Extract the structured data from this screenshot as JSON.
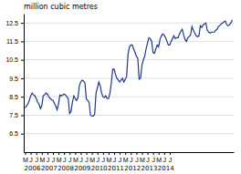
{
  "chart_data": {
    "type": "line",
    "title": "million cubic metres",
    "color": "#1f3888",
    "categories": [
      "M",
      null,
      null,
      null,
      "J",
      null,
      null,
      null,
      "J",
      null,
      null,
      null,
      "M",
      null,
      null,
      null,
      "J",
      null,
      null,
      null,
      "J",
      null,
      null,
      null,
      "M",
      null,
      null,
      null,
      "J",
      null,
      null,
      null,
      "J",
      null,
      null,
      null,
      "M",
      null,
      null,
      null,
      "J",
      null,
      null,
      null,
      "J",
      null,
      null,
      null,
      "M",
      null,
      null,
      null,
      "J",
      null,
      null,
      null,
      "J",
      null,
      null,
      null,
      "M",
      null,
      null,
      null,
      "J",
      null,
      null,
      null,
      "J",
      null,
      null,
      null,
      "M",
      null,
      null,
      null,
      "J",
      null,
      null,
      null,
      "J",
      null,
      null,
      null,
      "M",
      null,
      null,
      null,
      "J",
      null,
      null,
      null,
      "J",
      null,
      null,
      null,
      "M",
      null,
      null,
      null,
      "J",
      null,
      null,
      null,
      "J",
      null,
      null,
      null,
      null,
      null,
      null,
      null,
      null,
      null,
      null,
      null,
      null,
      null,
      null,
      null,
      null,
      null,
      null,
      null,
      null,
      null,
      null,
      null,
      null,
      null,
      null,
      null,
      null,
      null,
      null,
      null,
      null,
      null,
      null,
      null,
      null,
      null,
      null,
      null,
      null,
      null,
      null,
      null,
      null,
      null
    ],
    "values": [
      7.9,
      8.0,
      8.1,
      8.3,
      8.55,
      8.7,
      8.6,
      8.55,
      8.4,
      8.2,
      8.1,
      7.85,
      8.0,
      8.55,
      8.6,
      8.7,
      8.65,
      8.5,
      8.4,
      8.35,
      8.3,
      8.15,
      8.0,
      7.8,
      8.1,
      8.6,
      8.55,
      8.6,
      8.65,
      8.6,
      8.5,
      8.4,
      7.6,
      7.7,
      8.2,
      8.55,
      8.4,
      8.3,
      8.45,
      9.1,
      9.3,
      9.4,
      9.35,
      9.25,
      8.4,
      8.3,
      8.2,
      7.5,
      7.45,
      7.45,
      7.55,
      8.7,
      9.0,
      9.3,
      9.1,
      8.7,
      8.5,
      8.45,
      8.55,
      8.4,
      8.4,
      8.7,
      9.25,
      10.0,
      10.0,
      9.7,
      9.5,
      9.4,
      9.3,
      9.4,
      9.5,
      9.3,
      9.45,
      9.6,
      10.8,
      11.2,
      11.3,
      11.3,
      11.1,
      10.9,
      10.7,
      10.6,
      9.45,
      9.5,
      10.2,
      10.5,
      10.7,
      11.1,
      11.4,
      11.7,
      11.65,
      11.5,
      10.9,
      10.85,
      11.1,
      11.3,
      11.2,
      11.6,
      11.8,
      11.9,
      11.85,
      11.7,
      11.5,
      11.3,
      11.3,
      11.5,
      11.65,
      11.8,
      11.65,
      11.7,
      11.7,
      11.9,
      12.05,
      12.15,
      11.85,
      11.6,
      11.5,
      11.7,
      11.75,
      11.85,
      12.3,
      12.1,
      11.95,
      11.8,
      11.75,
      11.8,
      12.35,
      12.25,
      12.4,
      12.45,
      12.5,
      12.1,
      12.0,
      11.95,
      12.0,
      12.0,
      12.0,
      12.1,
      12.15,
      12.3,
      12.35,
      12.45,
      12.5,
      12.55,
      12.6,
      12.4,
      12.35,
      12.4,
      12.5,
      12.65
    ],
    "ylim": [
      5.5,
      13.0
    ],
    "yticks": [
      6.5,
      7.5,
      8.5,
      9.5,
      10.5,
      11.5,
      12.5
    ],
    "grid": true,
    "annotations": [
      {
        "text": "2006",
        "x": 0
      },
      {
        "text": "2007",
        "x": 12
      },
      {
        "text": "2008",
        "x": 24
      },
      {
        "text": "2009",
        "x": 36
      },
      {
        "text": "2010",
        "x": 48
      },
      {
        "text": "2011",
        "x": 60
      },
      {
        "text": "2012",
        "x": 72
      },
      {
        "text": "2013",
        "x": 84
      },
      {
        "text": "2014",
        "x": 96
      }
    ]
  }
}
